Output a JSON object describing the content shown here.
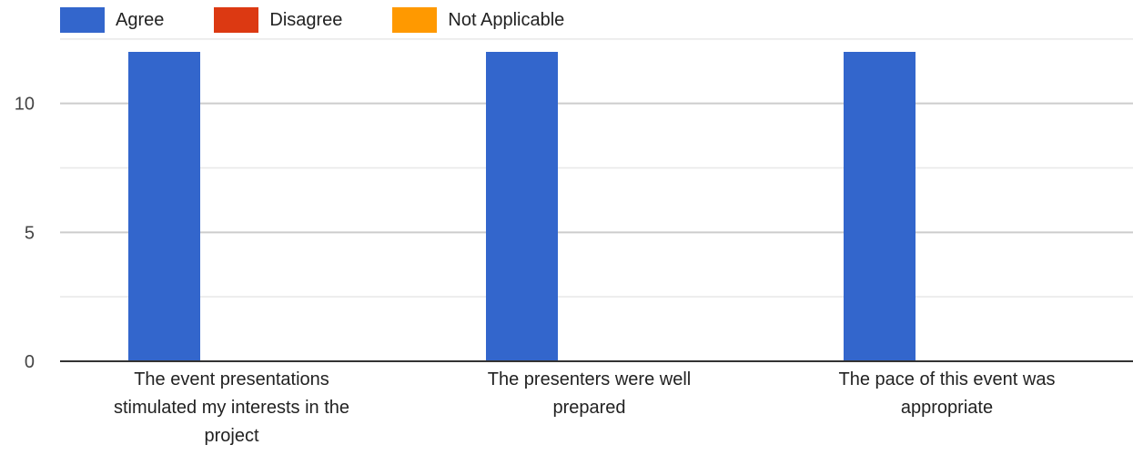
{
  "chart_data": {
    "type": "bar",
    "title": "",
    "xlabel": "",
    "ylabel": "",
    "categories": [
      [
        "The event presentations",
        "stimulated my interests in the",
        "project"
      ],
      [
        "The presenters were well",
        "prepared"
      ],
      [
        "The pace of this event was",
        "appropriate"
      ]
    ],
    "series": [
      {
        "name": "Agree",
        "color": "#3366cc",
        "values": [
          12,
          12,
          12
        ]
      },
      {
        "name": "Disagree",
        "color": "#dc3912",
        "values": [
          0,
          0,
          0
        ]
      },
      {
        "name": "Not Applicable",
        "color": "#ff9900",
        "values": [
          0,
          0,
          0
        ]
      }
    ],
    "ylim": [
      0,
      12
    ],
    "yticks": [
      0,
      5,
      10
    ],
    "grid": true,
    "legend_position": "top-left"
  }
}
